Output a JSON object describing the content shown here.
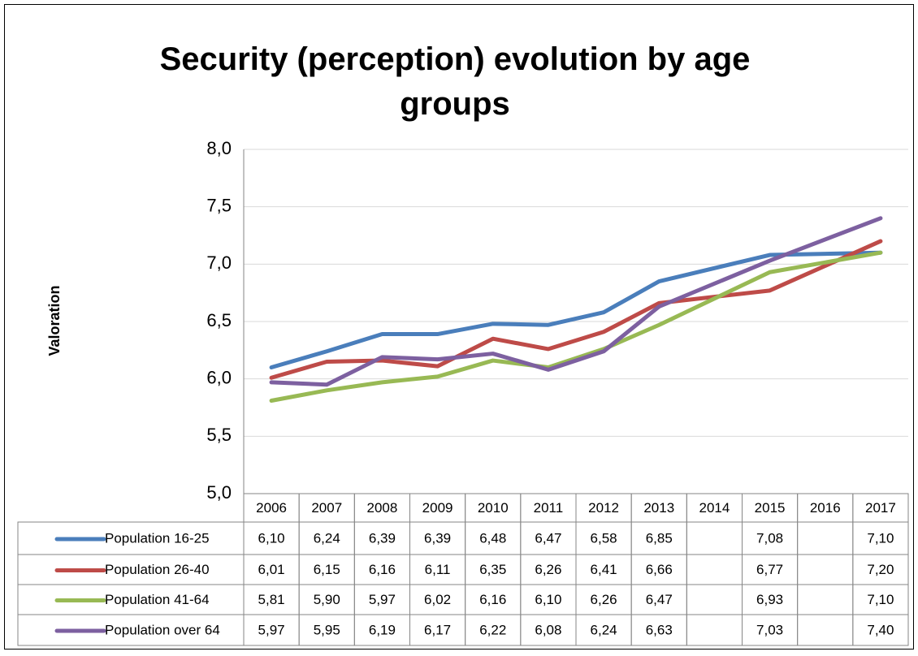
{
  "chart_data": {
    "type": "line",
    "title": "Security (perception) evolution by age groups",
    "y_label": "Valoration",
    "categories": [
      "2006",
      "2007",
      "2008",
      "2009",
      "2010",
      "2011",
      "2012",
      "2013",
      "2014",
      "2015",
      "2016",
      "2017"
    ],
    "series": [
      {
        "name": "Population 16-25",
        "color": "#4a7ebb",
        "values": [
          6.1,
          6.24,
          6.39,
          6.39,
          6.48,
          6.47,
          6.58,
          6.85,
          null,
          7.08,
          null,
          7.1
        ],
        "value_labels": [
          "6,10",
          "6,24",
          "6,39",
          "6,39",
          "6,48",
          "6,47",
          "6,58",
          "6,85",
          null,
          "7,08",
          null,
          "7,10"
        ]
      },
      {
        "name": "Population 26-40",
        "color": "#be4b48",
        "values": [
          6.01,
          6.15,
          6.16,
          6.11,
          6.35,
          6.26,
          6.41,
          6.66,
          null,
          6.77,
          null,
          7.2
        ],
        "value_labels": [
          "6,01",
          "6,15",
          "6,16",
          "6,11",
          "6,35",
          "6,26",
          "6,41",
          "6,66",
          null,
          "6,77",
          null,
          "7,20"
        ]
      },
      {
        "name": "Population 41-64",
        "color": "#98b954",
        "values": [
          5.81,
          5.9,
          5.97,
          6.02,
          6.16,
          6.1,
          6.26,
          6.47,
          null,
          6.93,
          null,
          7.1
        ],
        "value_labels": [
          "5,81",
          "5,90",
          "5,97",
          "6,02",
          "6,16",
          "6,10",
          "6,26",
          "6,47",
          null,
          "6,93",
          null,
          "7,10"
        ]
      },
      {
        "name": "Population over 64",
        "color": "#7d60a0",
        "values": [
          5.97,
          5.95,
          6.19,
          6.17,
          6.22,
          6.08,
          6.24,
          6.63,
          null,
          7.03,
          null,
          7.4
        ],
        "value_labels": [
          "5,97",
          "5,95",
          "6,19",
          "6,17",
          "6,22",
          "6,08",
          "6,24",
          "6,63",
          null,
          "7,03",
          null,
          "7,40"
        ]
      }
    ],
    "ylim": [
      5,
      8
    ],
    "yticks": [
      {
        "value": 5,
        "label": "5,0"
      },
      {
        "value": 5.5,
        "label": "5,5"
      },
      {
        "value": 6,
        "label": "6,0"
      },
      {
        "value": 6.5,
        "label": "6,5"
      },
      {
        "value": 7,
        "label": "7,0"
      },
      {
        "value": 7.5,
        "label": "7,5"
      },
      {
        "value": 8,
        "label": "8,0"
      }
    ],
    "grid": true,
    "connect_gaps": true,
    "data_table": true
  }
}
